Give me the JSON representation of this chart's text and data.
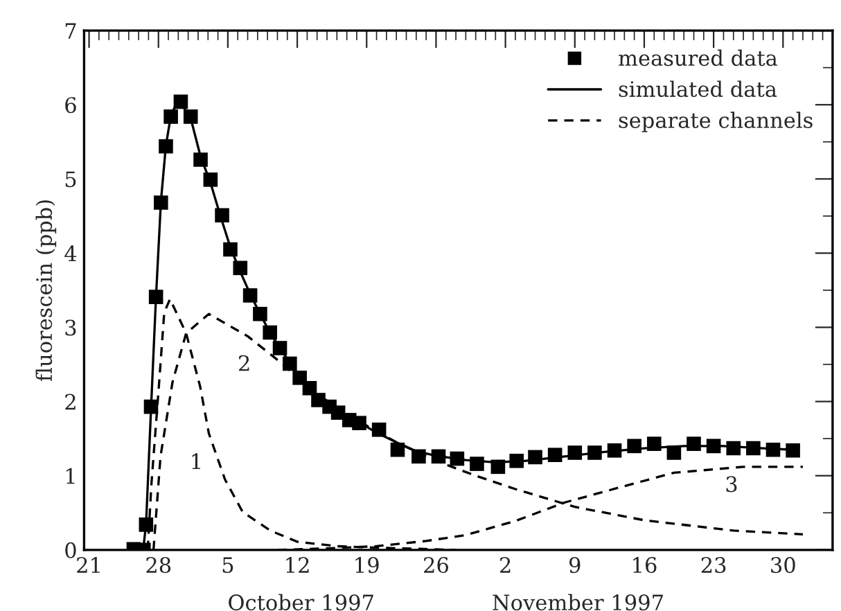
{
  "chart_data": {
    "type": "line",
    "ylabel": "fluorescein (ppb)",
    "xlim": [
      "1997-09-20T12:00",
      "1997-12-05"
    ],
    "xticks": [
      {
        "value": "1997-09-21",
        "label": "21"
      },
      {
        "value": "1997-09-28",
        "label": "28"
      },
      {
        "value": "1997-10-05",
        "label": "5"
      },
      {
        "value": "1997-10-12",
        "label": "12"
      },
      {
        "value": "1997-10-19",
        "label": "19"
      },
      {
        "value": "1997-10-26",
        "label": "26"
      },
      {
        "value": "1997-11-02",
        "label": "2"
      },
      {
        "value": "1997-11-09",
        "label": "9"
      },
      {
        "value": "1997-11-16",
        "label": "16"
      },
      {
        "value": "1997-11-23",
        "label": "23"
      },
      {
        "value": "1997-11-30",
        "label": "30"
      }
    ],
    "ylim": [
      0,
      7
    ],
    "yticks": [
      0,
      1,
      2,
      3,
      4,
      5,
      6,
      7
    ],
    "grid": false,
    "legend": "top right",
    "annotations": [
      "October 1997",
      "November 1997",
      "1",
      "2",
      "3"
    ],
    "series": [
      {
        "name": "measured data",
        "type": "scatter",
        "marker": "square",
        "color": "#000000",
        "x": [
          "1997-09-25T12:00",
          "1997-09-26T12:00",
          "1997-09-26T18:00",
          "1997-09-27T06:00",
          "1997-09-27T18:00",
          "1997-09-28T06:00",
          "1997-09-28T18:00",
          "1997-09-29T06:00",
          "1997-09-30T06:00",
          "1997-10-01T06:00",
          "1997-10-02T06:00",
          "1997-10-03T06:00",
          "1997-10-04T10:00",
          "1997-10-05T06:00",
          "1997-10-06T06:00",
          "1997-10-07T06:00",
          "1997-10-08T06:00",
          "1997-10-09T06:00",
          "1997-10-10T06:00",
          "1997-10-11T06:00",
          "1997-10-12T06:00",
          "1997-10-13T06:00",
          "1997-10-14T03:00",
          "1997-10-15T06:00",
          "1997-10-16T03:00",
          "1997-10-17T06:00",
          "1997-10-18T06:00",
          "1997-10-20T06:00",
          "1997-10-22T03:00",
          "1997-10-24T06:00",
          "1997-10-26T06:00",
          "1997-10-28T03:00",
          "1997-10-30T03:00",
          "1997-11-01T06:00",
          "1997-11-03T03:00",
          "1997-11-05",
          "1997-11-07",
          "1997-11-09",
          "1997-11-11",
          "1997-11-13",
          "1997-11-15",
          "1997-11-17",
          "1997-11-19",
          "1997-11-21",
          "1997-11-23",
          "1997-11-25",
          "1997-11-27",
          "1997-11-29",
          "1997-12-01"
        ],
        "values": [
          0.01,
          0.0,
          0.34,
          1.93,
          3.41,
          4.68,
          5.44,
          5.84,
          6.04,
          5.84,
          5.26,
          4.99,
          4.51,
          4.05,
          3.8,
          3.43,
          3.18,
          2.93,
          2.72,
          2.51,
          2.32,
          2.18,
          2.02,
          1.93,
          1.85,
          1.75,
          1.71,
          1.62,
          1.35,
          1.26,
          1.26,
          1.23,
          1.16,
          1.12,
          1.2,
          1.25,
          1.28,
          1.31,
          1.31,
          1.34,
          1.4,
          1.43,
          1.31,
          1.43,
          1.4,
          1.37,
          1.37,
          1.35,
          1.34
        ]
      },
      {
        "name": "simulated data",
        "line_style": "solid",
        "color": "#000000",
        "x": [
          "1997-09-26",
          "1997-09-26T12:00",
          "1997-09-26T18:00",
          "1997-09-27T06:00",
          "1997-09-27T18:00",
          "1997-09-28T06:00",
          "1997-09-28T18:00",
          "1997-09-29T06:00",
          "1997-09-29T18:00",
          "1997-09-30T06:00",
          "1997-10-01T06:00",
          "1997-10-02T06:00",
          "1997-10-03T06:00",
          "1997-10-04T06:00",
          "1997-10-05T06:00",
          "1997-10-06T06:00",
          "1997-10-07T06:00",
          "1997-10-08T06:00",
          "1997-10-09T06:00",
          "1997-10-10T06:00",
          "1997-10-12T06:00",
          "1997-10-14T06:00",
          "1997-10-16T06:00",
          "1997-10-18T06:00",
          "1997-10-20",
          "1997-10-22",
          "1997-10-24",
          "1997-10-26",
          "1997-10-29",
          "1997-11-01",
          "1997-11-04",
          "1997-11-08",
          "1997-11-12",
          "1997-11-16",
          "1997-11-20",
          "1997-11-24",
          "1997-11-28",
          "1997-12-01"
        ],
        "values": [
          0.0,
          0.05,
          0.35,
          1.9,
          3.4,
          4.7,
          5.45,
          5.85,
          6.0,
          6.02,
          5.82,
          5.3,
          4.95,
          4.5,
          4.08,
          3.75,
          3.45,
          3.18,
          2.93,
          2.72,
          2.33,
          2.05,
          1.86,
          1.72,
          1.58,
          1.45,
          1.33,
          1.27,
          1.21,
          1.18,
          1.2,
          1.26,
          1.32,
          1.37,
          1.4,
          1.4,
          1.37,
          1.35
        ]
      },
      {
        "name": "separate channels",
        "line_style": "dashed",
        "color": "#000000",
        "x": [
          "1997-09-26T22:00",
          "1997-09-27T07:00",
          "1997-09-28",
          "1997-09-28T14:00",
          "1997-09-29T04:00",
          "1997-09-30T19:00",
          "1997-10-02T05:00",
          "1997-10-03T02:00",
          "1997-10-04T17:00",
          "1997-10-06T12:00",
          "1997-10-09T07:00",
          "1997-10-12",
          "1997-10-16",
          "1997-10-20",
          "1997-10-28"
        ],
        "values": [
          0.0,
          0.89,
          2.13,
          3.2,
          3.38,
          2.92,
          2.2,
          1.57,
          0.95,
          0.51,
          0.26,
          0.11,
          0.05,
          0.03,
          0.0
        ]
      },
      {
        "line_style": "dashed",
        "color": "#000000",
        "x": [
          "1997-09-27T12:00",
          "1997-09-28T05:00",
          "1997-09-29T10:00",
          "1997-09-30T19:00",
          "1997-10-03T02:00",
          "1997-10-07",
          "1997-10-10T05:00",
          "1997-10-14",
          "1997-10-18",
          "1997-10-22",
          "1997-10-26",
          "1997-10-30",
          "1997-11-03",
          "1997-11-09",
          "1997-11-16",
          "1997-11-25",
          "1997-12-02"
        ],
        "values": [
          0.0,
          1.26,
          2.26,
          2.92,
          3.18,
          2.88,
          2.54,
          2.1,
          1.75,
          1.45,
          1.2,
          1.0,
          0.82,
          0.58,
          0.4,
          0.26,
          0.21
        ]
      },
      {
        "line_style": "dashed",
        "color": "#000000",
        "x": [
          "1997-10-10",
          "1997-10-15",
          "1997-10-20",
          "1997-10-25",
          "1997-10-29",
          "1997-11-03",
          "1997-11-08",
          "1997-11-14",
          "1997-11-19",
          "1997-11-26",
          "1997-12-02"
        ],
        "values": [
          0.0,
          0.02,
          0.05,
          0.12,
          0.2,
          0.39,
          0.64,
          0.86,
          1.04,
          1.12,
          1.12
        ]
      }
    ]
  }
}
